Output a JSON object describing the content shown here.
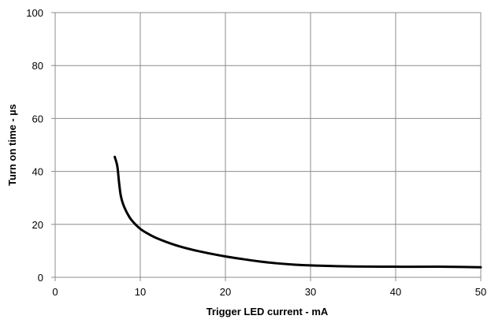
{
  "chart_data": {
    "type": "line",
    "title": "",
    "xlabel": "Trigger LED current - mA",
    "ylabel": "Turn on time - µs",
    "xlim": [
      0,
      50
    ],
    "ylim": [
      0,
      100
    ],
    "x_ticks": [
      0,
      10,
      20,
      30,
      40,
      50
    ],
    "y_ticks": [
      0,
      20,
      40,
      60,
      80,
      100
    ],
    "grid": true,
    "legend": "none",
    "series": [
      {
        "color": "#000000",
        "points": [
          [
            7.0,
            45.5
          ],
          [
            7.3,
            42.0
          ],
          [
            7.5,
            36.0
          ],
          [
            7.7,
            31.0
          ],
          [
            8.0,
            27.5
          ],
          [
            8.5,
            24.0
          ],
          [
            9.0,
            21.5
          ],
          [
            10.0,
            18.3
          ],
          [
            11.0,
            16.3
          ],
          [
            12.0,
            14.7
          ],
          [
            14.0,
            12.3
          ],
          [
            16.0,
            10.5
          ],
          [
            18.0,
            9.1
          ],
          [
            20.0,
            7.9
          ],
          [
            22.0,
            6.9
          ],
          [
            24.0,
            6.0
          ],
          [
            26.0,
            5.3
          ],
          [
            28.0,
            4.8
          ],
          [
            30.0,
            4.5
          ],
          [
            32.0,
            4.3
          ],
          [
            35.0,
            4.1
          ],
          [
            40.0,
            4.0
          ],
          [
            45.0,
            4.0
          ],
          [
            48.0,
            3.9
          ],
          [
            50.0,
            3.8
          ]
        ]
      }
    ]
  }
}
